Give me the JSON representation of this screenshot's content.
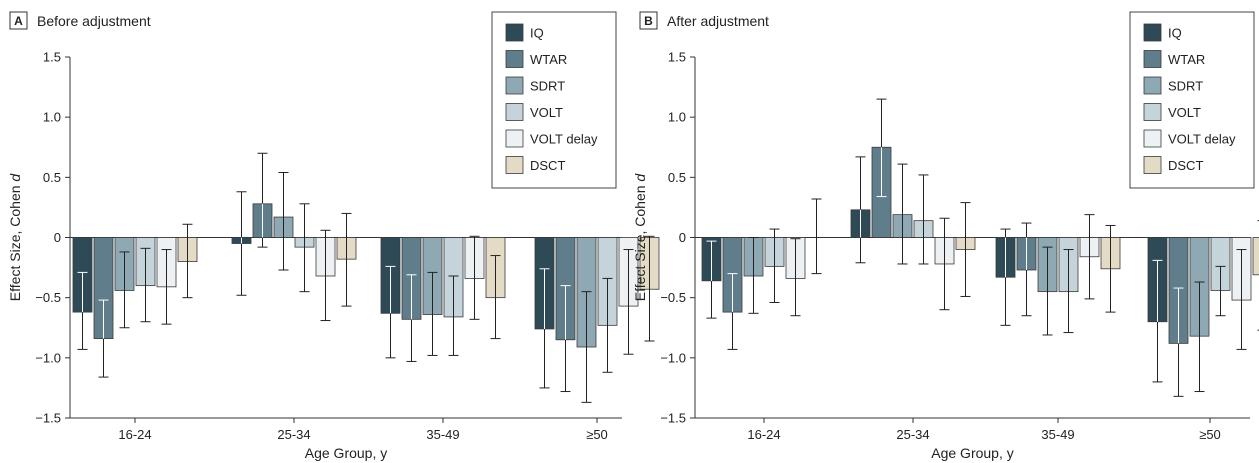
{
  "figure": {
    "series_colors": {
      "IQ": "#2e4a57",
      "WTAR": "#5f7d8a",
      "SDRT": "#8fa9b4",
      "VOLT": "#c5d3da",
      "VOLT delay": "#eef1f4",
      "DSCT": "#e3dbc6"
    }
  },
  "chart_data": [
    {
      "panel_letter": "A",
      "title": "Before adjustment",
      "type": "bar",
      "xlabel": "Age Group, y",
      "ylabel": "Effect Size, Cohen d",
      "ylabel_text": "Effect Size, Cohen ",
      "ylabel_italic": "d",
      "ylim": [
        -1.5,
        1.5
      ],
      "yticks": [
        1.5,
        1.0,
        0.5,
        0,
        -0.5,
        -1.0,
        -1.5
      ],
      "ytick_labels": [
        "1.5",
        "1.0",
        "0.5",
        "0",
        "−0.5",
        "−1.0",
        "−1.5"
      ],
      "categories": [
        "16-24",
        "25-34",
        "35-49",
        "≥50"
      ],
      "legend_position": "top-right",
      "error_bars": true,
      "series": [
        {
          "name": "IQ",
          "values": [
            -0.62,
            -0.05,
            -0.63,
            -0.76
          ],
          "ci_low": [
            -0.93,
            -0.48,
            -1.0,
            -1.25
          ],
          "ci_high": [
            -0.29,
            0.38,
            -0.24,
            -0.26
          ]
        },
        {
          "name": "WTAR",
          "values": [
            -0.84,
            0.28,
            -0.68,
            -0.85
          ],
          "ci_low": [
            -1.16,
            -0.08,
            -1.03,
            -1.28
          ],
          "ci_high": [
            -0.52,
            0.7,
            -0.31,
            -0.4
          ]
        },
        {
          "name": "SDRT",
          "values": [
            -0.44,
            0.17,
            -0.64,
            -0.91
          ],
          "ci_low": [
            -0.75,
            -0.27,
            -0.98,
            -1.37
          ],
          "ci_high": [
            -0.12,
            0.54,
            -0.29,
            -0.45
          ]
        },
        {
          "name": "VOLT",
          "values": [
            -0.4,
            -0.08,
            -0.66,
            -0.73
          ],
          "ci_low": [
            -0.7,
            -0.45,
            -0.98,
            -1.12
          ],
          "ci_high": [
            -0.09,
            0.28,
            -0.32,
            -0.34
          ]
        },
        {
          "name": "VOLT delay",
          "values": [
            -0.41,
            -0.32,
            -0.34,
            -0.57
          ],
          "ci_low": [
            -0.72,
            -0.69,
            -0.68,
            -0.97
          ],
          "ci_high": [
            -0.1,
            0.06,
            0.01,
            -0.1
          ]
        },
        {
          "name": "DSCT",
          "values": [
            -0.2,
            -0.18,
            -0.5,
            -0.43
          ],
          "ci_low": [
            -0.5,
            -0.57,
            -0.84,
            -0.86
          ],
          "ci_high": [
            0.11,
            0.2,
            -0.15,
            0.01
          ]
        }
      ]
    },
    {
      "panel_letter": "B",
      "title": "After adjustment",
      "type": "bar",
      "xlabel": "Age Group, y",
      "ylabel": "Effect Size, Cohen d",
      "ylabel_text": "Effect Size, Cohen ",
      "ylabel_italic": "d",
      "ylim": [
        -1.5,
        1.5
      ],
      "yticks": [
        1.5,
        1.0,
        0.5,
        0,
        -0.5,
        -1.0,
        -1.5
      ],
      "ytick_labels": [
        "1.5",
        "1.0",
        "0.5",
        "0",
        "−0.5",
        "−1.0",
        "−1.5"
      ],
      "categories": [
        "16-24",
        "25-34",
        "35-49",
        "≥50"
      ],
      "legend_position": "top-right",
      "error_bars": true,
      "series": [
        {
          "name": "IQ",
          "values": [
            -0.36,
            0.23,
            -0.33,
            -0.7
          ],
          "ci_low": [
            -0.67,
            -0.21,
            -0.73,
            -1.2
          ],
          "ci_high": [
            -0.03,
            0.67,
            0.07,
            -0.19
          ]
        },
        {
          "name": "WTAR",
          "values": [
            -0.62,
            0.75,
            -0.27,
            -0.88
          ],
          "ci_low": [
            -0.93,
            0.34,
            -0.65,
            -1.32
          ],
          "ci_high": [
            -0.3,
            1.15,
            0.12,
            -0.42
          ]
        },
        {
          "name": "SDRT",
          "values": [
            -0.32,
            0.19,
            -0.45,
            -0.82
          ],
          "ci_low": [
            -0.63,
            -0.22,
            -0.81,
            -1.28
          ],
          "ci_high": [
            0.0,
            0.61,
            -0.08,
            -0.37
          ]
        },
        {
          "name": "VOLT",
          "values": [
            -0.24,
            0.14,
            -0.45,
            -0.44
          ],
          "ci_low": [
            -0.54,
            -0.22,
            -0.79,
            -0.65
          ],
          "ci_high": [
            0.07,
            0.52,
            -0.1,
            -0.24
          ]
        },
        {
          "name": "VOLT delay",
          "values": [
            -0.34,
            -0.22,
            -0.16,
            -0.52
          ],
          "ci_low": [
            -0.65,
            -0.6,
            -0.51,
            -0.93
          ],
          "ci_high": [
            -0.01,
            0.16,
            0.19,
            -0.1
          ]
        },
        {
          "name": "DSCT",
          "values": [
            0,
            -0.1,
            -0.26,
            -0.31
          ],
          "ci_low": [
            -0.3,
            -0.49,
            -0.62,
            -0.77
          ],
          "ci_high": [
            0.32,
            0.29,
            0.1,
            0.14
          ]
        }
      ]
    }
  ]
}
